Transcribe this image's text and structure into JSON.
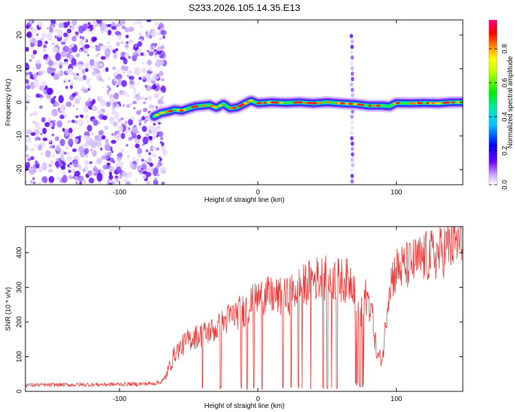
{
  "title": "S233.2026.105.14.35.E13",
  "chart_data": [
    {
      "type": "heatmap",
      "xlabel": "Height of straight line (km)",
      "ylabel": "Frequency (Hz)",
      "xlim": [
        -168,
        148
      ],
      "ylim": [
        -24.5,
        24.5
      ],
      "x_ticks": [
        -100,
        0,
        100
      ],
      "y_ticks": [
        -20,
        -10,
        0,
        10,
        20
      ],
      "grid": false,
      "colorbar": {
        "label": "Normalized spectral amplitude",
        "range": [
          0,
          0.97
        ],
        "ticks": [
          0.0,
          0.2,
          0.4,
          0.6,
          0.8
        ]
      },
      "noise_region_x": [
        -168,
        -67
      ],
      "dispersion_line": {
        "x": [
          -75,
          -70,
          -65,
          -60,
          -55,
          -50,
          -45,
          -40,
          -35,
          -30,
          -25,
          -20,
          -15,
          -10,
          -5,
          0,
          10,
          20,
          30,
          40,
          50,
          60,
          70,
          80,
          90,
          95,
          100,
          110,
          120,
          130,
          140,
          148
        ],
        "y": [
          -4.2,
          -3.2,
          -2.8,
          -2.2,
          -2.5,
          -1.8,
          -1.2,
          -1.0,
          -0.8,
          -1.6,
          -0.5,
          -1.8,
          -1.5,
          -0.5,
          0.5,
          -0.3,
          0.0,
          -0.2,
          0.0,
          -0.3,
          0.0,
          -0.3,
          -0.5,
          -1.0,
          -1.0,
          -1.2,
          -0.2,
          -0.3,
          -0.2,
          -0.3,
          0.0,
          0.0
        ]
      },
      "vertical_streak_x": 68
    },
    {
      "type": "line",
      "xlabel": "Height of straight line (km)",
      "ylabel": "SNR (10 * v/v)",
      "xlim": [
        -168,
        148
      ],
      "ylim": [
        0,
        475
      ],
      "x_ticks": [
        -100,
        0,
        100
      ],
      "y_ticks": [
        0,
        100,
        200,
        300,
        400
      ],
      "grid": false,
      "series_color": "#ee3333",
      "trend": {
        "x": [
          -168,
          -140,
          -110,
          -90,
          -75,
          -68,
          -60,
          -50,
          -40,
          -30,
          -20,
          -10,
          0,
          10,
          20,
          30,
          40,
          50,
          60,
          68,
          72,
          76,
          82,
          86,
          90,
          95,
          100,
          110,
          120,
          130,
          140,
          148
        ],
        "y": [
          18,
          19,
          20,
          21,
          23,
          30,
          110,
          150,
          165,
          180,
          215,
          235,
          270,
          275,
          270,
          300,
          325,
          330,
          320,
          320,
          300,
          290,
          240,
          100,
          95,
          315,
          350,
          365,
          385,
          395,
          425,
          430
        ]
      },
      "dropouts_x": [
        -40,
        -27,
        -12,
        -8,
        -3,
        3,
        18,
        24,
        29,
        32,
        38,
        47,
        50,
        53,
        57
      ],
      "dropout_block": [
        70,
        77
      ]
    }
  ]
}
